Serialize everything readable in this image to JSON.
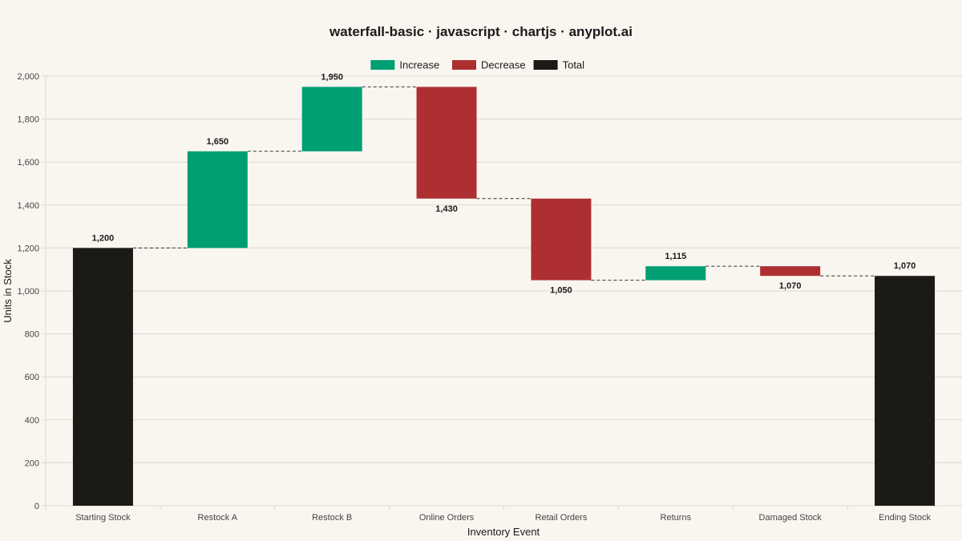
{
  "chart_data": {
    "type": "bar",
    "title": "waterfall-basic · javascript · chartjs · anyplot.ai",
    "xlabel": "Inventory Event",
    "ylabel": "Units in Stock",
    "ylim": [
      0,
      2000
    ],
    "yticks": [
      0,
      200,
      400,
      600,
      800,
      1000,
      1200,
      1400,
      1600,
      1800,
      2000
    ],
    "ytick_labels": [
      "0",
      "200",
      "400",
      "600",
      "800",
      "1,000",
      "1,200",
      "1,400",
      "1,600",
      "1,800",
      "2,000"
    ],
    "categories": [
      "Starting Stock",
      "Restock A",
      "Restock B",
      "Online Orders",
      "Retail Orders",
      "Returns",
      "Damaged Stock",
      "Ending Stock"
    ],
    "bars": [
      {
        "kind": "total",
        "start": 0,
        "end": 1200,
        "label": "1,200"
      },
      {
        "kind": "increase",
        "start": 1200,
        "end": 1650,
        "label": "1,650"
      },
      {
        "kind": "increase",
        "start": 1650,
        "end": 1950,
        "label": "1,950"
      },
      {
        "kind": "decrease",
        "start": 1950,
        "end": 1430,
        "label": "1,430"
      },
      {
        "kind": "decrease",
        "start": 1430,
        "end": 1050,
        "label": "1,050"
      },
      {
        "kind": "increase",
        "start": 1050,
        "end": 1115,
        "label": "1,115"
      },
      {
        "kind": "decrease",
        "start": 1115,
        "end": 1070,
        "label": "1,070"
      },
      {
        "kind": "total",
        "start": 0,
        "end": 1070,
        "label": "1,070"
      }
    ],
    "legend": [
      {
        "name": "Increase",
        "color": "#009e73"
      },
      {
        "name": "Decrease",
        "color": "#ae2f31"
      },
      {
        "name": "Total",
        "color": "#1b1a16"
      }
    ],
    "colors": {
      "increase": "#009e73",
      "decrease": "#ae2f31",
      "total": "#1b1a16"
    },
    "legend_position": "top",
    "grid": true,
    "connectors": true
  }
}
